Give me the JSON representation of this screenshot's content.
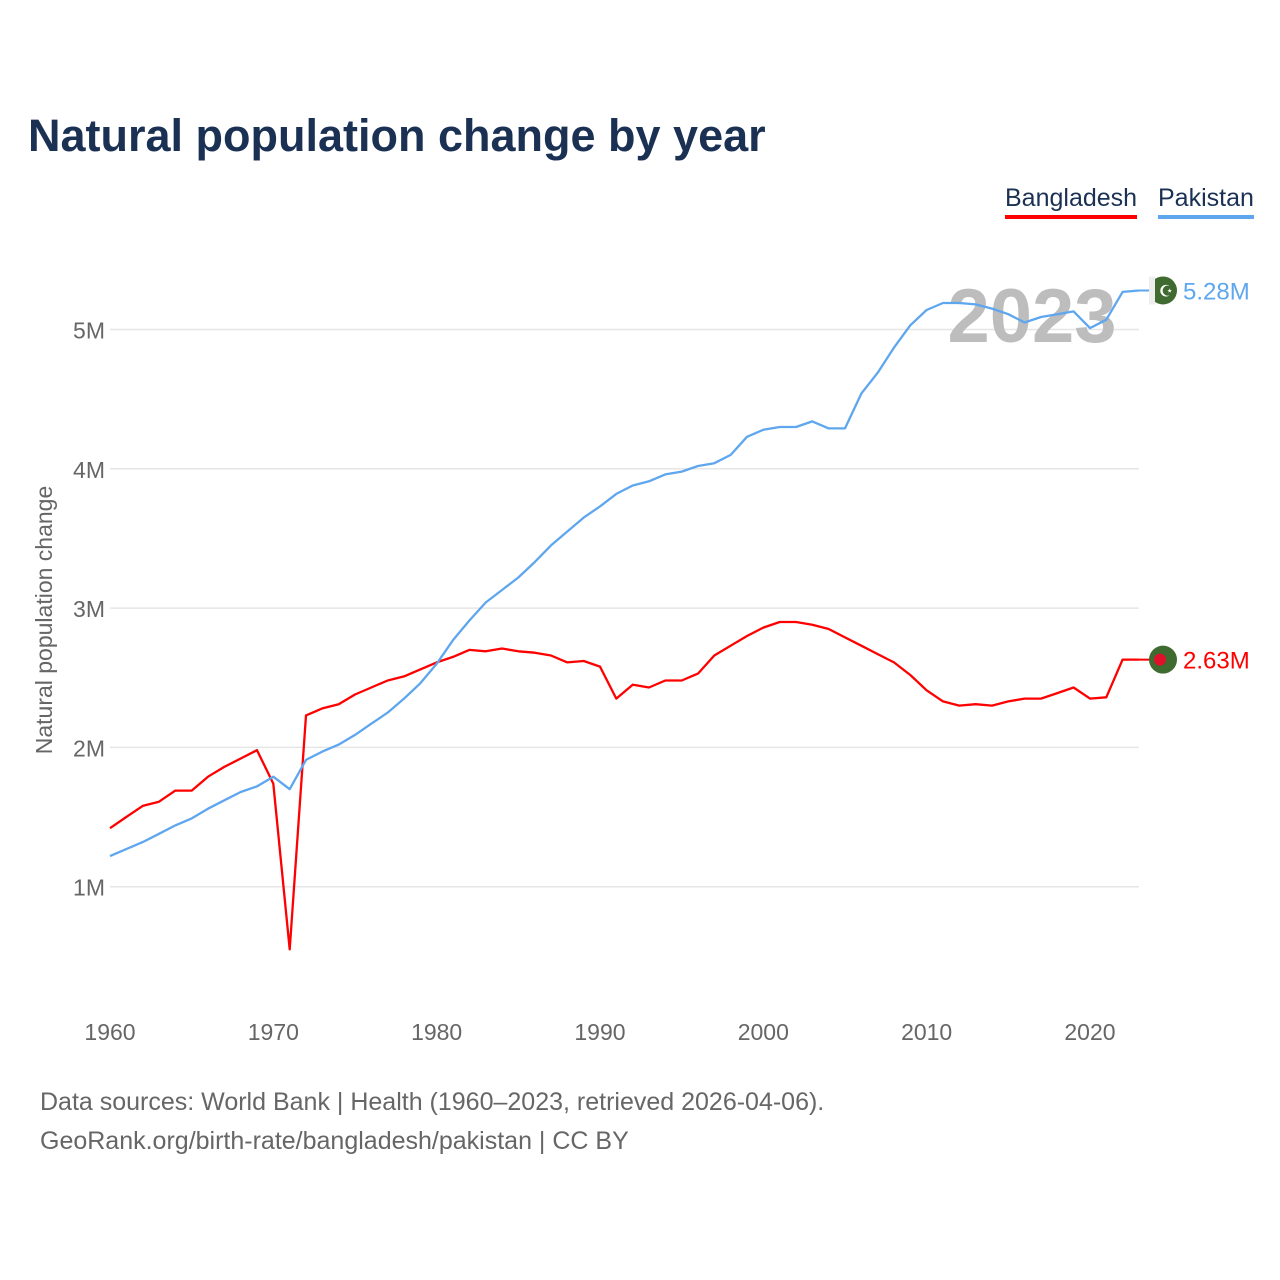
{
  "title": "Natural population change by year",
  "legend": [
    {
      "name": "Bangladesh",
      "color": "#ff0000"
    },
    {
      "name": "Pakistan",
      "color": "#5ea6ee"
    }
  ],
  "year_watermark": "2023",
  "footer": {
    "line1": "Data sources: World Bank | Health (1960–2023, retrieved 2026-04-06).",
    "line2": "GeoRank.org/birth-rate/bangladesh/pakistan | CC BY"
  },
  "chart_data": {
    "type": "line",
    "title": "Natural population change by year",
    "xlabel": "",
    "ylabel": "Natural population change",
    "xlim": [
      1960,
      2023
    ],
    "ylim": [
      0,
      5.5
    ],
    "yunit": "M",
    "x_ticks": [
      "1960",
      "1970",
      "1980",
      "1990",
      "2000",
      "2010",
      "2020"
    ],
    "y_ticks": [
      "1M",
      "2M",
      "3M",
      "4M",
      "5M"
    ],
    "grid": true,
    "legend_position": "top-right",
    "x_start": 1960,
    "series": [
      {
        "name": "Bangladesh",
        "color": "#ff0000",
        "end_label": "2.63M",
        "values": [
          1.42,
          1.5,
          1.58,
          1.61,
          1.69,
          1.69,
          1.79,
          1.86,
          1.92,
          1.98,
          1.74,
          0.55,
          2.23,
          2.28,
          2.31,
          2.38,
          2.43,
          2.48,
          2.51,
          2.56,
          2.61,
          2.65,
          2.7,
          2.69,
          2.71,
          2.69,
          2.68,
          2.66,
          2.61,
          2.62,
          2.58,
          2.35,
          2.45,
          2.43,
          2.48,
          2.48,
          2.53,
          2.66,
          2.73,
          2.8,
          2.86,
          2.9,
          2.9,
          2.88,
          2.85,
          2.79,
          2.73,
          2.67,
          2.61,
          2.52,
          2.41,
          2.33,
          2.3,
          2.31,
          2.3,
          2.33,
          2.35,
          2.35,
          2.39,
          2.43,
          2.35,
          2.36,
          2.63,
          2.63
        ]
      },
      {
        "name": "Pakistan",
        "color": "#5ea6ee",
        "end_label": "5.28M",
        "values": [
          1.22,
          1.27,
          1.32,
          1.38,
          1.44,
          1.49,
          1.56,
          1.62,
          1.68,
          1.72,
          1.79,
          1.7,
          1.91,
          1.97,
          2.02,
          2.09,
          2.17,
          2.25,
          2.35,
          2.46,
          2.6,
          2.77,
          2.91,
          3.04,
          3.13,
          3.22,
          3.33,
          3.45,
          3.55,
          3.65,
          3.73,
          3.82,
          3.88,
          3.91,
          3.96,
          3.98,
          4.02,
          4.04,
          4.1,
          4.23,
          4.28,
          4.3,
          4.3,
          4.34,
          4.29,
          4.29,
          4.54,
          4.69,
          4.87,
          5.03,
          5.14,
          5.19,
          5.19,
          5.18,
          5.15,
          5.11,
          5.05,
          5.09,
          5.11,
          5.13,
          5.01,
          5.07,
          5.27,
          5.28
        ]
      }
    ]
  }
}
